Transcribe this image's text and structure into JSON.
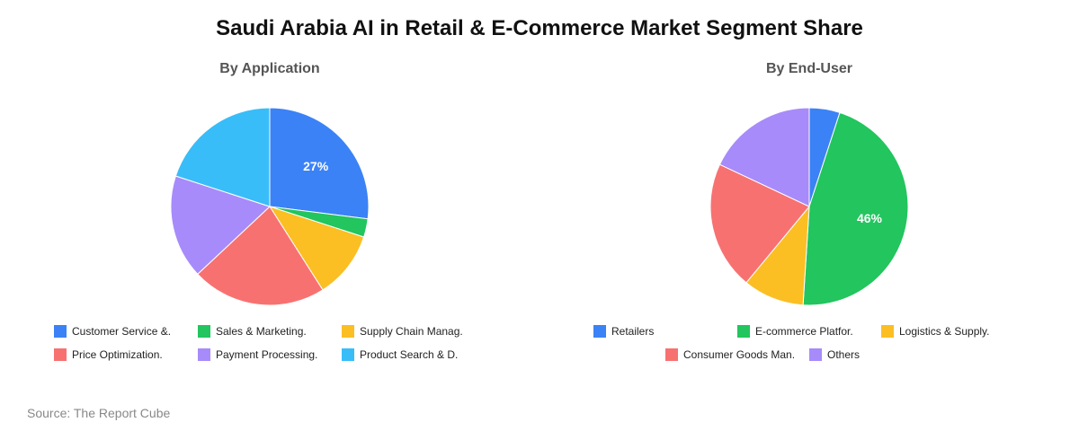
{
  "title": "Saudi Arabia AI in Retail & E-Commerce Market Segment Share",
  "source": "Source: The Report Cube",
  "chart_data": [
    {
      "type": "pie",
      "title": "By Application",
      "categories": [
        "Customer Service &.",
        "Sales & Marketing.",
        "Supply Chain Manag.",
        "Price Optimization.",
        "Payment Processing.",
        "Product Search & D."
      ],
      "values": [
        27,
        3,
        11,
        22,
        17,
        20
      ],
      "colors": [
        "#3b82f6",
        "#22c55e",
        "#fbbf24",
        "#f87171",
        "#a78bfa",
        "#38bdf8"
      ],
      "data_labels": [
        "27%",
        "",
        "",
        "",
        "",
        ""
      ],
      "legend": "bottom"
    },
    {
      "type": "pie",
      "title": "By End-User",
      "categories": [
        "Retailers",
        "E-commerce Platfor.",
        "Logistics & Supply.",
        "Consumer Goods Man.",
        "Others"
      ],
      "values": [
        5,
        46,
        10,
        21,
        18
      ],
      "colors": [
        "#3b82f6",
        "#22c55e",
        "#fbbf24",
        "#f87171",
        "#a78bfa"
      ],
      "data_labels": [
        "",
        "46%",
        "",
        "",
        ""
      ],
      "legend": "bottom"
    }
  ]
}
